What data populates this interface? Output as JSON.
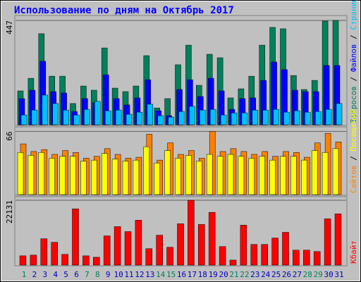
{
  "chart_data": [
    {
      "type": "bar",
      "title": "Использование по дням на Октябрь 2017",
      "ylim": [
        0,
        465
      ],
      "yticks": [
        447
      ],
      "legend_separator": " / ",
      "series": [
        {
          "name": "Запросов",
          "color": "#00805c",
          "values": [
            145,
            199,
            390,
            208,
            208,
            91,
            166,
            148,
            329,
            157,
            142,
            166,
            296,
            72,
            112,
            257,
            341,
            169,
            302,
            287,
            115,
            154,
            208,
            341,
            417,
            411,
            211,
            151,
            190,
            444,
            447
          ]
        },
        {
          "name": "Файлов",
          "color": "#0000ff",
          "values": [
            112,
            148,
            272,
            142,
            136,
            57,
            112,
            94,
            214,
            112,
            85,
            115,
            193,
            60,
            39,
            151,
            193,
            121,
            199,
            145,
            66,
            112,
            115,
            190,
            269,
            236,
            148,
            142,
            142,
            254,
            254
          ]
        },
        {
          "name": "Страниц",
          "color": "#00c0ff",
          "values": [
            42,
            63,
            127,
            91,
            63,
            42,
            66,
            100,
            60,
            63,
            45,
            54,
            88,
            39,
            33,
            57,
            79,
            63,
            66,
            42,
            51,
            51,
            63,
            63,
            66,
            54,
            60,
            54,
            57,
            66,
            91
          ]
        }
      ]
    },
    {
      "type": "bar",
      "ylim": [
        0,
        70
      ],
      "yticks": [
        66
      ],
      "legend_separator": " / ",
      "series": [
        {
          "name": "Сайтов",
          "color": "#ff8000",
          "values": [
            53,
            45,
            47,
            42,
            46,
            44,
            38,
            40,
            48,
            42,
            38,
            39,
            63,
            36,
            54,
            42,
            46,
            38,
            66,
            45,
            48,
            45,
            42,
            45,
            40,
            45,
            44,
            39,
            54,
            64,
            55
          ]
        },
        {
          "name": "Посещений",
          "color": "#ffff00",
          "values": [
            44,
            41,
            44,
            38,
            40,
            40,
            35,
            36,
            43,
            37,
            35,
            36,
            50,
            33,
            46,
            38,
            41,
            35,
            42,
            40,
            42,
            40,
            38,
            40,
            36,
            40,
            40,
            36,
            46,
            44,
            48
          ]
        }
      ]
    },
    {
      "type": "bar",
      "ylim": [
        0,
        23100
      ],
      "yticks": [
        22131
      ],
      "categories": [
        "1",
        "2",
        "3",
        "4",
        "5",
        "6",
        "7",
        "8",
        "9",
        "10",
        "11",
        "12",
        "13",
        "14",
        "15",
        "16",
        "17",
        "18",
        "19",
        "20",
        "21",
        "22",
        "23",
        "24",
        "25",
        "26",
        "27",
        "28",
        "29",
        "30",
        "31"
      ],
      "category_colors": [
        "#00805c",
        "#0000c0",
        "#0000c0",
        "#0000c0",
        "#0000c0",
        "#0000c0",
        "#00805c",
        "#00805c",
        "#0000c0",
        "#0000c0",
        "#0000c0",
        "#0000c0",
        "#0000c0",
        "#00805c",
        "#00805c",
        "#0000c0",
        "#0000c0",
        "#0000c0",
        "#0000c0",
        "#0000c0",
        "#00805c",
        "#00805c",
        "#0000c0",
        "#0000c0",
        "#0000c0",
        "#0000c0",
        "#0000c0",
        "#00805c",
        "#00805c",
        "#0000c0",
        "#0000c0"
      ],
      "series": [
        {
          "name": "Кбайт",
          "color": "#ff0000",
          "values": [
            3161,
            3400,
            9000,
            7780,
            3650,
            19200,
            3160,
            2675,
            9970,
            13130,
            11430,
            15320,
            5590,
            10210,
            6080,
            14100,
            22131,
            13860,
            18000,
            6320,
            1700,
            13620,
            7050,
            7050,
            9240,
            11190,
            5100,
            5100,
            4620,
            15800,
            17500
          ]
        }
      ]
    }
  ]
}
